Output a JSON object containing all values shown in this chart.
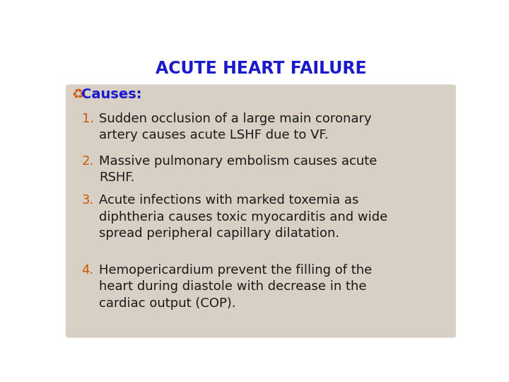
{
  "title": "ACUTE HEART FAILURE",
  "title_color": "#1a1acc",
  "title_fontsize": 17,
  "background_color": "#ffffff",
  "outer_box_color": "#ffffff",
  "box_color": "#d8d0c4",
  "causes_symbol": "♻",
  "causes_symbol_color": "#cc5500",
  "causes_text": "Causes:",
  "causes_color": "#1a1acc",
  "causes_fontsize": 14,
  "number_color": "#cc5500",
  "text_color": "#1a1a1a",
  "item_fontsize": 13,
  "items": [
    "Sudden occlusion of a large main coronary\nartery causes acute LSHF due to VF.",
    "Massive pulmonary embolism causes acute\nRSHF.",
    "Acute infections with marked toxemia as\ndiphtheria causes toxic myocarditis and wide\nspread peripheral capillary dilatation.",
    "Hemopericardium prevent the filling of the\nheart during diastole with decrease in the\ncardiac output (COP)."
  ]
}
